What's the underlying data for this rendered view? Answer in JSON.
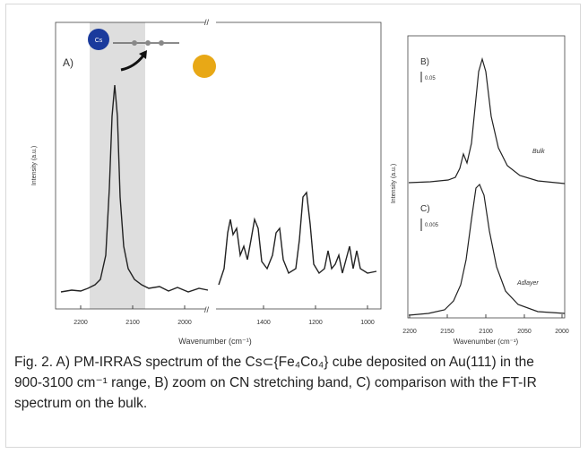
{
  "figure": {
    "panel_a": {
      "label": "A)",
      "y_label": "Intensity (a.u.)",
      "x_label": "Wavenumber (cm⁻¹)",
      "x_tick_labels": [
        "2200",
        "2100",
        "2000",
        "1400",
        "1200",
        "1000"
      ],
      "cs_atom": "Cs"
    },
    "panel_b": {
      "label": "B)",
      "scale": "0.05",
      "trace_label": "Bulk"
    },
    "panel_c": {
      "label": "C)",
      "scale": "0.005",
      "trace_label": "Adlayer"
    },
    "panel_bc": {
      "y_label": "Intensity (a.u.)",
      "x_label": "Wavenumber (cm⁻¹)",
      "x_tick_labels": [
        "2200",
        "2150",
        "2100",
        "2050",
        "2000"
      ]
    }
  },
  "caption": "Fig. 2. A) PM-IRRAS spectrum of the Cs⊂{Fe₄Co₄} cube deposited on Au(111) in the 900-3100 cm⁻¹ range, B) zoom on CN stretching band, C) comparison with the FT-IR spectrum on the bulk."
}
